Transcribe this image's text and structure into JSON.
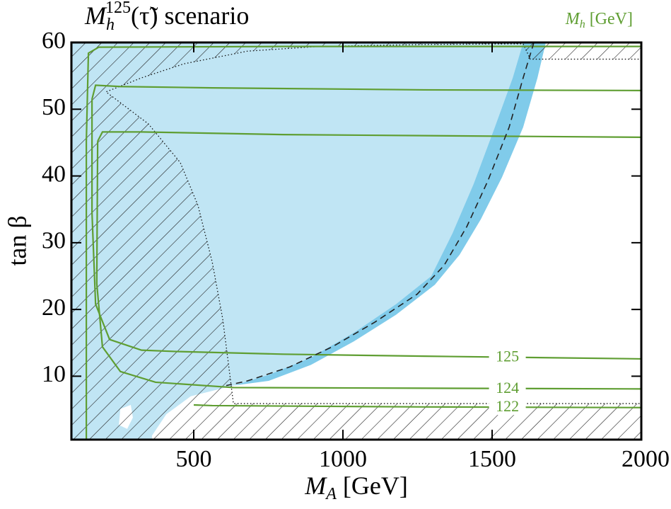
{
  "chart_data": {
    "type": "contour",
    "title": {
      "base": "M",
      "sub": "h",
      "sup": "125",
      "rest": "(τ̃) scenario"
    },
    "x_label": {
      "base": "M",
      "sub": "A",
      "rest": " [GeV]"
    },
    "y_label": "tan β",
    "legend_title": {
      "base": "M",
      "sub": "h",
      "rest": " [GeV]",
      "color": "#5f9e32"
    },
    "xlim": [
      90,
      2000
    ],
    "ylim": [
      0.5,
      60
    ],
    "xticks": [
      500,
      1000,
      1500,
      2000
    ],
    "yticks": [
      10,
      20,
      30,
      40,
      50,
      60
    ],
    "regions": [
      {
        "color": "#c0e5f4",
        "x": [
          90,
          90,
          1604,
          1569,
          1509,
          1438,
          1367,
          1296,
          1178,
          1036,
          893,
          751,
          633,
          490,
          408,
          360,
          360
        ],
        "y": [
          0.5,
          60,
          60,
          54.7,
          47.3,
          38.8,
          31.4,
          25.0,
          20.8,
          16.5,
          12.8,
          10.2,
          8.6,
          7.0,
          4.3,
          1.1,
          0.5
        ]
      },
      {
        "color": "#80cbea",
        "x": [
          1604,
          1569,
          1509,
          1438,
          1367,
          1296,
          1178,
          1036,
          893,
          751,
          633,
          751,
          893,
          1036,
          1178,
          1308,
          1391,
          1462,
          1533,
          1604,
          1652,
          1680
        ],
        "y": [
          60,
          54.7,
          47.3,
          38.8,
          31.4,
          25.0,
          20.8,
          16.5,
          12.8,
          10.2,
          8.6,
          9.3,
          11.7,
          15.2,
          19.2,
          23.7,
          28.2,
          33.5,
          39.8,
          47.3,
          54.7,
          60
        ]
      },
      {
        "color": "#ffffff",
        "x": [
          254,
          289,
          296,
          277,
          249
        ],
        "y": [
          5.1,
          5.7,
          3.8,
          2.1,
          2.7
        ]
      }
    ],
    "hatch": {
      "x": [
        90,
        2000,
        2000,
        633,
        621,
        597,
        562,
        514,
        455,
        348,
        206,
        325,
        467,
        680,
        917,
        1272,
        1604,
        1628,
        2000,
        2000,
        90
      ],
      "y": [
        0.5,
        0.5,
        5.9,
        5.9,
        10.2,
        18.6,
        27.1,
        35.6,
        42.0,
        47.8,
        52.6,
        54.7,
        56.8,
        58.7,
        59.4,
        59.7,
        59.8,
        57.5,
        57.5,
        60,
        60
      ]
    },
    "lines": [
      {
        "color": "#5f9e32",
        "x": [
          2000,
          799,
          182,
          147,
          140,
          140
        ],
        "y": [
          59.4,
          59.4,
          59.3,
          58.4,
          45.2,
          0.6
        ]
      },
      {
        "label": "125",
        "color": "#5f9e32",
        "x": [
          159,
          159,
          171,
          218,
          325,
          443,
          799,
          1272,
          2000
        ],
        "y": [
          51.5,
          34.5,
          20.8,
          15.5,
          13.9,
          13.7,
          13.3,
          13.0,
          12.6
        ]
      },
      {
        "color": "#5f9e32",
        "x": [
          159,
          171,
          254,
          562,
          1272,
          2000
        ],
        "y": [
          51.5,
          53.6,
          53.4,
          53.2,
          52.9,
          52.8
        ]
      },
      {
        "label": "124",
        "color": "#5f9e32",
        "x": [
          178,
          175,
          194,
          254,
          372,
          633,
          1272,
          2000
        ],
        "y": [
          45.2,
          23.9,
          14.4,
          10.7,
          9.1,
          8.3,
          8.2,
          8.1
        ]
      },
      {
        "color": "#5f9e32",
        "x": [
          178,
          194,
          325,
          799,
          2000
        ],
        "y": [
          45.2,
          46.6,
          46.6,
          46.2,
          45.8
        ]
      },
      {
        "label": "122",
        "color": "#5f9e32",
        "x": [
          500,
          562,
          1272,
          2000
        ],
        "y": [
          5.7,
          5.6,
          5.4,
          5.3
        ]
      },
      {
        "color": "#222222",
        "style": "dashed",
        "x": [
          1640,
          1604,
          1557,
          1486,
          1415,
          1339,
          1249,
          1107,
          964,
          822,
          680,
          609
        ],
        "y": [
          60,
          54.7,
          47.3,
          39.3,
          32.4,
          26.6,
          22.3,
          18.1,
          14.4,
          11.4,
          9.3,
          8.6
        ]
      }
    ]
  }
}
